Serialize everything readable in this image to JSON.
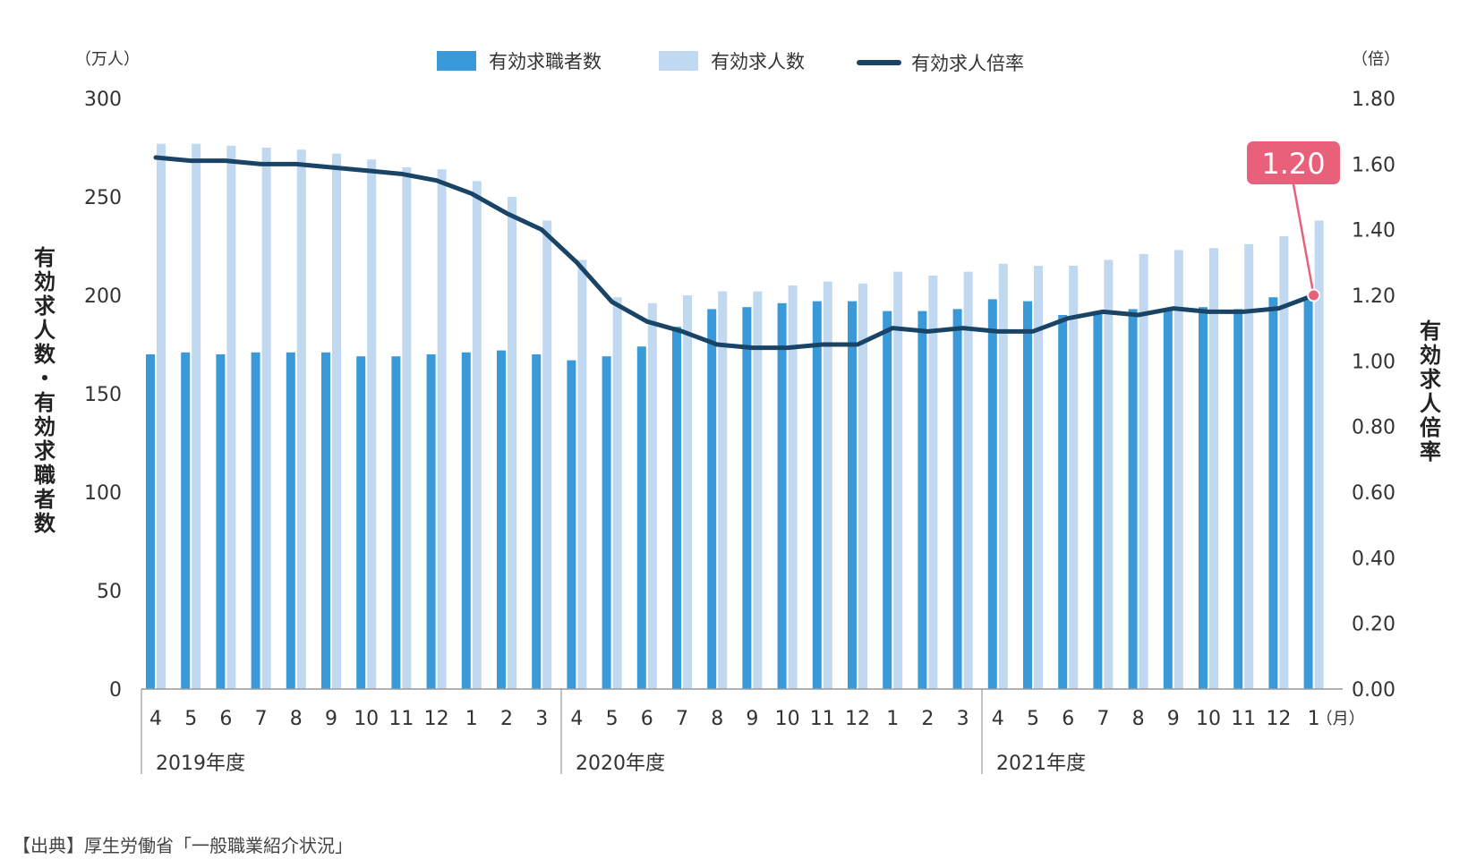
{
  "chart_data": {
    "type": "bar",
    "legend": {
      "placement": "top-center",
      "items": [
        {
          "label": "有効求職者数",
          "kind": "bar"
        },
        {
          "label": "有効求人数",
          "kind": "bar"
        },
        {
          "label": "有効求人倍率",
          "kind": "line"
        }
      ]
    },
    "left_axis": {
      "unit_label": "（万人）",
      "title": "有効求人数・有効求職者数",
      "ticks": [
        "300",
        "250",
        "200",
        "150",
        "100",
        "50",
        "0"
      ],
      "ylim": [
        0,
        300
      ]
    },
    "right_axis": {
      "unit_label": "（倍）",
      "title": "有効求人倍率",
      "ticks": [
        "1.80",
        "1.60",
        "1.40",
        "1.20",
        "1.00",
        "0.80",
        "0.60",
        "0.40",
        "0.20",
        "0.00"
      ],
      "ylim": [
        0,
        1.8
      ]
    },
    "categories": [
      "4",
      "5",
      "6",
      "7",
      "8",
      "9",
      "10",
      "11",
      "12",
      "1",
      "2",
      "3",
      "4",
      "5",
      "6",
      "7",
      "8",
      "9",
      "10",
      "11",
      "12",
      "1",
      "2",
      "3",
      "4",
      "5",
      "6",
      "7",
      "8",
      "9",
      "10",
      "11",
      "12",
      "1"
    ],
    "month_unit": "（月）",
    "fiscal_years": [
      {
        "label": "2019年度",
        "start": 0,
        "count": 12
      },
      {
        "label": "2020年度",
        "start": 12,
        "count": 12
      },
      {
        "label": "2021年度",
        "start": 24,
        "count": 10
      }
    ],
    "series": [
      {
        "name": "有効求職者数",
        "type": "bar",
        "color": "#3a9ad9",
        "values": [
          170,
          171,
          170,
          171,
          171,
          171,
          169,
          169,
          170,
          171,
          172,
          170,
          167,
          169,
          174,
          184,
          193,
          194,
          196,
          197,
          197,
          192,
          192,
          193,
          198,
          197,
          190,
          192,
          193,
          193,
          194,
          193,
          199,
          198
        ]
      },
      {
        "name": "有効求人数",
        "type": "bar",
        "color": "#c0d9f0",
        "values": [
          277,
          277,
          276,
          275,
          274,
          272,
          269,
          265,
          264,
          258,
          250,
          238,
          218,
          199,
          196,
          200,
          202,
          202,
          205,
          207,
          206,
          212,
          210,
          212,
          216,
          215,
          215,
          218,
          221,
          223,
          224,
          226,
          230,
          238
        ]
      },
      {
        "name": "有効求人倍率",
        "type": "line",
        "axis": "right",
        "color": "#1a4466",
        "values": [
          1.62,
          1.61,
          1.61,
          1.6,
          1.6,
          1.59,
          1.58,
          1.57,
          1.55,
          1.51,
          1.45,
          1.4,
          1.3,
          1.18,
          1.12,
          1.09,
          1.05,
          1.04,
          1.04,
          1.05,
          1.05,
          1.1,
          1.09,
          1.1,
          1.09,
          1.09,
          1.13,
          1.15,
          1.14,
          1.16,
          1.15,
          1.15,
          1.16,
          1.2
        ]
      }
    ],
    "annotation": {
      "label": "1.20",
      "index": 33,
      "color": "#e8607a"
    },
    "source": "【出典】厚生労働省「一般職業紹介状況」"
  }
}
